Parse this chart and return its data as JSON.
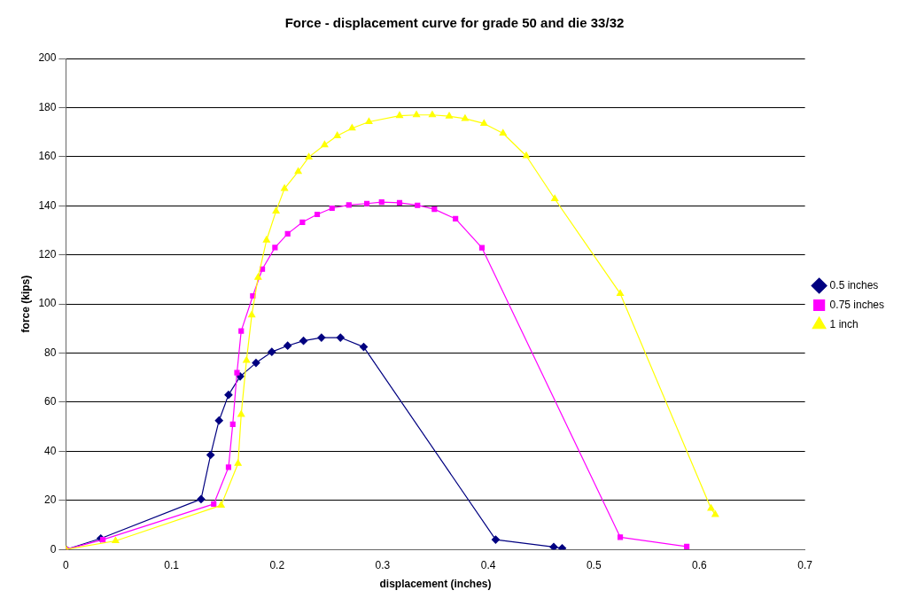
{
  "chart_data": {
    "type": "line",
    "title": "Force - displacement curve for grade 50 and die 33/32",
    "xlabel": "displacement (inches)",
    "ylabel": "force (kips)",
    "xlim": [
      0,
      0.7
    ],
    "xticks": [
      0,
      0.1,
      0.2,
      0.3,
      0.4,
      0.5,
      0.6,
      0.7
    ],
    "ylim": [
      0,
      200
    ],
    "yticks": [
      0,
      20,
      40,
      60,
      80,
      100,
      120,
      140,
      160,
      180,
      200
    ],
    "grid": "y",
    "legend": "right",
    "line_style": "solid",
    "series": [
      {
        "name": "0.5 inches",
        "color": "#000080",
        "marker": "diamond",
        "x": [
          0,
          0.033,
          0.128,
          0.137,
          0.145,
          0.154,
          0.165,
          0.18,
          0.195,
          0.21,
          0.225,
          0.242,
          0.26,
          0.282,
          0.407,
          0.462,
          0.47
        ],
        "values": [
          0,
          4.5,
          20.5,
          38.5,
          52.5,
          63,
          70.5,
          76,
          80.5,
          83,
          85,
          86.3,
          86.3,
          82.5,
          4,
          1,
          0.5
        ]
      },
      {
        "name": "0.75 inches",
        "color": "#ff00ff",
        "marker": "square",
        "x": [
          0,
          0.035,
          0.14,
          0.154,
          0.158,
          0.162,
          0.166,
          0.177,
          0.186,
          0.198,
          0.21,
          0.224,
          0.238,
          0.252,
          0.268,
          0.285,
          0.299,
          0.316,
          0.333,
          0.349,
          0.369,
          0.394,
          0.525,
          0.588
        ],
        "values": [
          0,
          4,
          18.5,
          33.5,
          51,
          72,
          89,
          103.3,
          114.2,
          123,
          128.6,
          133.3,
          136.5,
          139,
          140.3,
          140.9,
          141.5,
          141.2,
          140.2,
          138.6,
          134.7,
          122.9,
          5,
          1.2
        ]
      },
      {
        "name": "1 inch",
        "color": "#ffff00",
        "marker": "triangle",
        "x": [
          0,
          0.047,
          0.147,
          0.163,
          0.166,
          0.171,
          0.176,
          0.182,
          0.19,
          0.199,
          0.207,
          0.22,
          0.23,
          0.245,
          0.257,
          0.271,
          0.287,
          0.316,
          0.332,
          0.347,
          0.363,
          0.378,
          0.396,
          0.414,
          0.436,
          0.463,
          0.525,
          0.611,
          0.615
        ],
        "values": [
          0,
          3.5,
          18,
          35,
          55,
          77,
          95.5,
          110.8,
          126,
          137.8,
          147,
          153.9,
          159.8,
          164.8,
          168.5,
          171.6,
          174.2,
          176.7,
          177,
          177,
          176.5,
          175.5,
          173.5,
          169.5,
          160.3,
          142.8,
          104.2,
          16.7,
          14.2
        ]
      }
    ]
  }
}
